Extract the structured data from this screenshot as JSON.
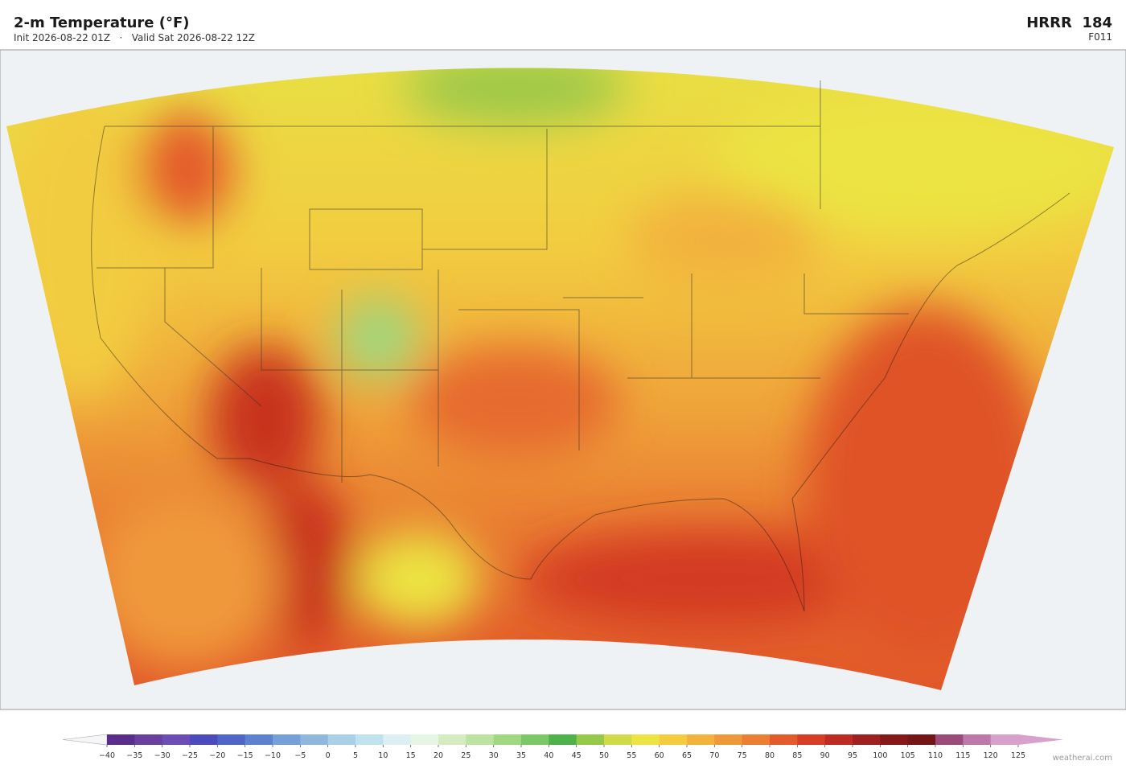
{
  "header": {
    "title": "2-m Temperature  (°F)",
    "subtitle": "Init 2026-08-22 01Z   ·   Valid Sat 2026-08-22 12Z",
    "model": "HRRR  184",
    "forecast_hour": "F011"
  },
  "colorbar": {
    "lim": [
      -40,
      125
    ],
    "ticks": [
      {
        "value": -40,
        "label": "−40"
      },
      {
        "value": -35,
        "label": "−35"
      },
      {
        "value": -30,
        "label": "−30"
      },
      {
        "value": -25,
        "label": "−25"
      },
      {
        "value": -20,
        "label": "−20"
      },
      {
        "value": -15,
        "label": "−15"
      },
      {
        "value": -10,
        "label": "−10"
      },
      {
        "value": -5,
        "label": "−5"
      },
      0,
      5,
      10,
      15,
      20,
      25,
      30,
      35,
      40,
      45,
      50,
      55,
      60,
      65,
      70,
      75,
      80,
      85,
      90,
      95,
      100,
      105,
      110,
      115,
      120,
      125
    ],
    "colors": [
      "#5a2d8c",
      "#6a3fa0",
      "#6b4db5",
      "#4b4bbf",
      "#4f66c8",
      "#5c82d0",
      "#75a0d8",
      "#8fb8de",
      "#a8d0e6",
      "#c0e2ee",
      "#daf0f2",
      "#e6f5e6",
      "#d4ecc0",
      "#bde3a0",
      "#9fd880",
      "#7cc868",
      "#4db24a",
      "#96c84a",
      "#cfdb48",
      "#ece443",
      "#f4cc40",
      "#f2b23c",
      "#ef983a",
      "#eb7d35",
      "#e45a2b",
      "#d83c24",
      "#bf2a22",
      "#a01f1f",
      "#86181a",
      "#741618",
      "#9c4a7a",
      "#bc78aa",
      "#d8a0cc"
    ],
    "under_color": "#f6f6f8",
    "over_color": "#d8a0cc"
  },
  "footer": {
    "credit": "weatherai.com"
  }
}
